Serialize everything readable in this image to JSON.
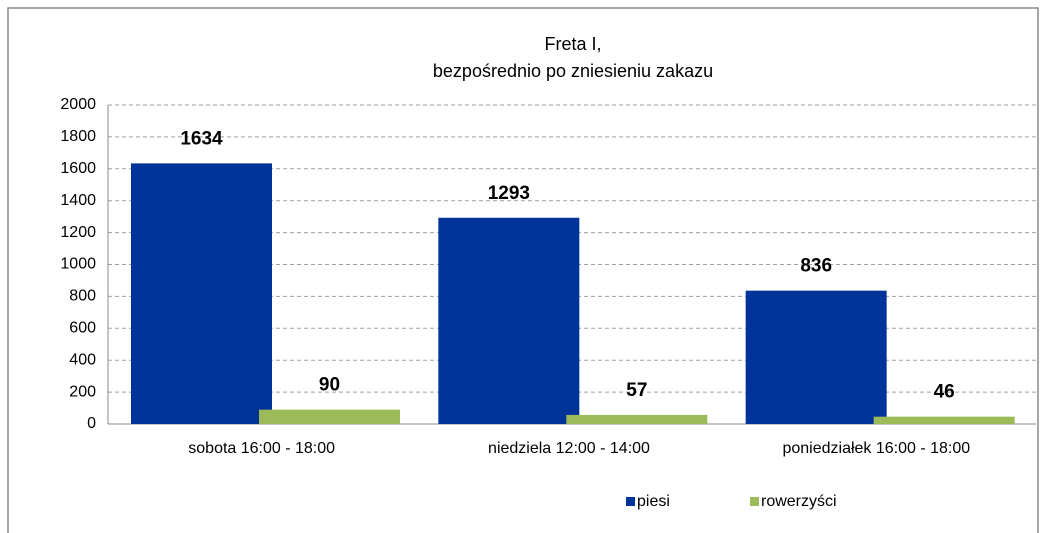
{
  "chart_data": {
    "type": "bar",
    "title": [
      "Freta I,",
      "bezpośrednio po zniesieniu zakazu"
    ],
    "categories": [
      "sobota 16:00 - 18:00",
      "niedziela 12:00 - 14:00",
      "poniedziałek 16:00 - 18:00"
    ],
    "series": [
      {
        "name": "piesi",
        "color": "#003399",
        "values": [
          1634,
          1293,
          836
        ]
      },
      {
        "name": "rowerzyści",
        "color": "#9bbb59",
        "values": [
          90,
          57,
          46
        ]
      }
    ],
    "ylim": [
      0,
      2000
    ],
    "yticks": [
      0,
      200,
      400,
      600,
      800,
      1000,
      1200,
      1400,
      1600,
      1800,
      2000
    ],
    "grid": true,
    "legend": "bottom"
  }
}
